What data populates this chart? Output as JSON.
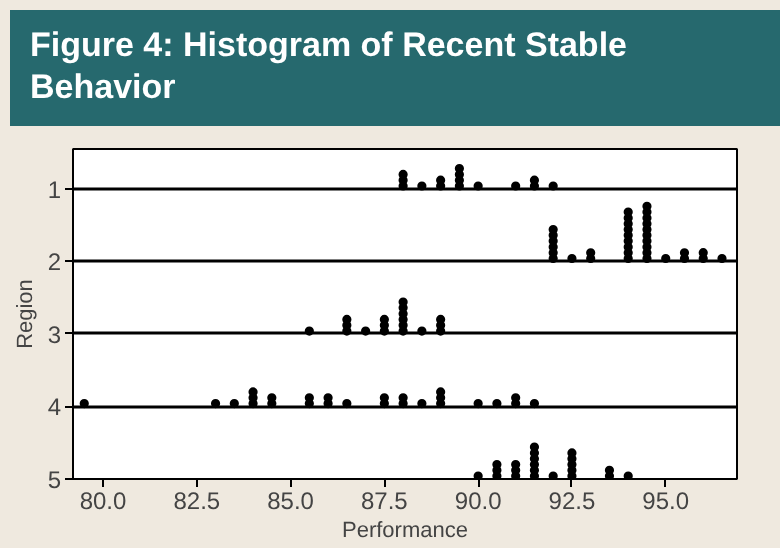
{
  "chart_data": {
    "type": "scatter",
    "title": "Figure 4: Histogram of Recent Stable Behavior",
    "xlabel": "Performance",
    "ylabel": "Region",
    "series": [
      {
        "color": "#000000",
        "x": [
          88,
          88,
          88,
          88.5,
          89,
          89,
          89.5,
          89.5,
          89.5,
          89.5,
          90,
          91,
          91.5,
          91.5,
          92
        ],
        "values": [
          0.96,
          0.88,
          0.8,
          0.96,
          0.96,
          0.88,
          0.96,
          0.88,
          0.8,
          0.72,
          0.96,
          0.96,
          0.96,
          0.88,
          0.96
        ]
      },
      {
        "color": "#000000",
        "x": [
          92,
          92,
          92,
          92,
          92,
          92,
          92.5,
          93,
          93,
          94,
          94,
          94,
          94,
          94,
          94,
          94,
          94,
          94,
          94.5,
          94.5,
          94.5,
          94.5,
          94.5,
          94.5,
          94.5,
          94.5,
          94.5,
          94.5,
          95,
          95.5,
          95.5,
          96,
          96,
          96.5
        ],
        "values": [
          1.96,
          1.88,
          1.8,
          1.72,
          1.64,
          1.56,
          1.96,
          1.96,
          1.88,
          1.96,
          1.88,
          1.8,
          1.72,
          1.64,
          1.56,
          1.48,
          1.4,
          1.32,
          1.96,
          1.88,
          1.8,
          1.72,
          1.64,
          1.56,
          1.48,
          1.4,
          1.32,
          1.24,
          1.96,
          1.96,
          1.88,
          1.96,
          1.88,
          1.96
        ]
      },
      {
        "color": "#000000",
        "x": [
          85.5,
          86.5,
          86.5,
          86.5,
          87,
          87.5,
          87.5,
          87.5,
          88,
          88,
          88,
          88,
          88,
          88,
          88.5,
          89,
          89,
          89
        ],
        "values": [
          2.96,
          2.96,
          2.88,
          2.8,
          2.96,
          2.96,
          2.88,
          2.8,
          2.96,
          2.88,
          2.8,
          2.72,
          2.64,
          2.56,
          2.96,
          2.96,
          2.88,
          2.8
        ]
      },
      {
        "color": "#000000",
        "x": [
          79.5,
          83,
          83.5,
          84,
          84,
          84,
          84.5,
          84.5,
          85.5,
          85.5,
          86,
          86,
          86.5,
          87.5,
          87.5,
          88,
          88,
          88.5,
          89,
          89,
          89,
          90,
          90.5,
          91,
          91,
          91.5
        ],
        "values": [
          3.96,
          3.96,
          3.96,
          3.96,
          3.88,
          3.8,
          3.96,
          3.88,
          3.96,
          3.88,
          3.96,
          3.88,
          3.96,
          3.96,
          3.88,
          3.96,
          3.88,
          3.96,
          3.96,
          3.88,
          3.8,
          3.96,
          3.96,
          3.96,
          3.88,
          3.96
        ]
      },
      {
        "color": "#000000",
        "x": [
          90,
          90.5,
          90.5,
          90.5,
          91,
          91,
          91,
          91.5,
          91.5,
          91.5,
          91.5,
          91.5,
          91.5,
          92,
          92.5,
          92.5,
          92.5,
          92.5,
          92.5,
          93.5,
          93.5,
          94
        ],
        "values": [
          4.96,
          4.96,
          4.88,
          4.8,
          4.96,
          4.88,
          4.8,
          4.96,
          4.88,
          4.8,
          4.72,
          4.64,
          4.56,
          4.96,
          4.96,
          4.88,
          4.8,
          4.72,
          4.64,
          4.96,
          4.88,
          4.96
        ]
      }
    ],
    "xlim": [
      79.2,
      96.9
    ],
    "xticks": [
      {
        "value": 80,
        "label": "80.0"
      },
      {
        "value": 82.5,
        "label": "82.5"
      },
      {
        "value": 85,
        "label": "85.0"
      },
      {
        "value": 87.5,
        "label": "87.5"
      },
      {
        "value": 90,
        "label": "90.0"
      },
      {
        "value": 92.5,
        "label": "92.5"
      },
      {
        "value": 95,
        "label": "95.0"
      }
    ],
    "ylim": [
      5,
      0.45
    ],
    "yticks": [
      1,
      2,
      3,
      4,
      5
    ],
    "marker": "circle",
    "grid": "y"
  }
}
